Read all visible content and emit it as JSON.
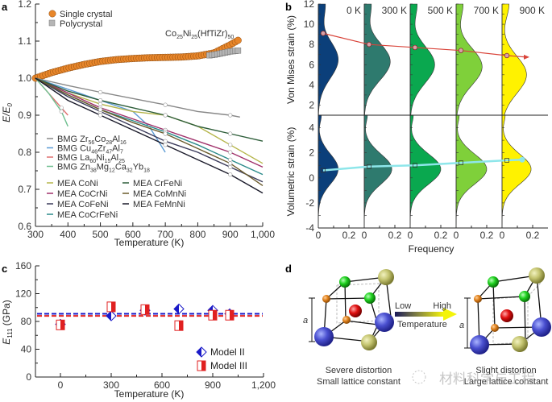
{
  "chart_data": [
    {
      "panel": "a",
      "type": "line",
      "xlabel": "Temperature (K)",
      "ylabel": "E/E0",
      "xlim": [
        300,
        1000
      ],
      "ylim": [
        0.6,
        1.2
      ],
      "xticks": [
        "300",
        "400",
        "500",
        "600",
        "700",
        "800",
        "900",
        "1,000"
      ],
      "yticks": [
        "0.6",
        "0.7",
        "0.8",
        "0.9",
        "1.0",
        "1.1",
        "1.2"
      ],
      "annotation": "Co25Ni25(HfTiZr)50",
      "legend_top": [
        {
          "name": "Single crystal",
          "marker": "circle",
          "color": "#e8862a"
        },
        {
          "name": "Polycrystal",
          "marker": "square",
          "color": "#b5b5b5"
        }
      ],
      "series": [
        {
          "name": "Single crystal",
          "color": "#e8862a",
          "x": [
            300,
            350,
            400,
            450,
            500,
            550,
            600,
            650,
            700,
            750,
            800,
            850,
            900,
            930
          ],
          "y": [
            1.0,
            1.015,
            1.027,
            1.037,
            1.045,
            1.05,
            1.053,
            1.055,
            1.056,
            1.057,
            1.06,
            1.068,
            1.09,
            1.105
          ]
        },
        {
          "name": "Polycrystal",
          "color": "#b5b5b5",
          "x": [
            300,
            350,
            400,
            450,
            500,
            550,
            600,
            650,
            700,
            750,
            800,
            850,
            900,
            930
          ],
          "y": [
            1.0,
            1.015,
            1.027,
            1.037,
            1.045,
            1.05,
            1.053,
            1.055,
            1.056,
            1.057,
            1.058,
            1.063,
            1.072,
            1.075
          ]
        },
        {
          "name": "BMG Zr56Co28Al16",
          "color": "#888888",
          "x": [
            300,
            400,
            500,
            600,
            700,
            800,
            900,
            930
          ],
          "y": [
            1.0,
            0.98,
            0.962,
            0.945,
            0.928,
            0.91,
            0.9,
            0.895
          ]
        },
        {
          "name": "BMG Cu46Zr47Al7",
          "color": "#5b9bd5",
          "x": [
            300,
            400,
            500,
            600,
            650,
            700
          ],
          "y": [
            1.0,
            0.97,
            0.94,
            0.91,
            0.87,
            0.8
          ]
        },
        {
          "name": "BMG La60Ni15Al25",
          "color": "#e07070",
          "x": [
            300,
            340,
            380,
            400
          ],
          "y": [
            1.0,
            0.96,
            0.92,
            0.9
          ]
        },
        {
          "name": "BMG Zn38Mg12Ca32Yb18",
          "color": "#6fbf8f",
          "x": [
            300,
            340,
            380,
            400
          ],
          "y": [
            1.0,
            0.96,
            0.91,
            0.87
          ]
        },
        {
          "name": "MEA CoNi",
          "color": "#b5b54a",
          "x": [
            300,
            400,
            500,
            600,
            700,
            800,
            900,
            1000
          ],
          "y": [
            1.0,
            0.96,
            0.93,
            0.91,
            0.9,
            0.87,
            0.82,
            0.77
          ]
        },
        {
          "name": "MEA CoCrNi",
          "color": "#a0306a",
          "x": [
            300,
            400,
            500,
            600,
            700,
            800,
            900,
            1000
          ],
          "y": [
            1.0,
            0.96,
            0.92,
            0.89,
            0.86,
            0.83,
            0.8,
            0.76
          ]
        },
        {
          "name": "MEA CoFeNi",
          "color": "#3a3a5a",
          "x": [
            300,
            400,
            500,
            600,
            700,
            800,
            900,
            1000
          ],
          "y": [
            1.0,
            0.95,
            0.91,
            0.87,
            0.83,
            0.8,
            0.76,
            0.72
          ]
        },
        {
          "name": "MEA CoCrFeNi",
          "color": "#2a8a8a",
          "x": [
            300,
            400,
            500,
            600,
            700,
            800,
            900,
            1000
          ],
          "y": [
            1.0,
            0.955,
            0.915,
            0.885,
            0.855,
            0.82,
            0.78,
            0.74
          ]
        },
        {
          "name": "MEA CrFeNi",
          "color": "#2e5e3a",
          "x": [
            300,
            400,
            500,
            600,
            700,
            800,
            900,
            1000
          ],
          "y": [
            1.0,
            0.965,
            0.94,
            0.92,
            0.9,
            0.87,
            0.85,
            0.83
          ]
        },
        {
          "name": "MEA CoMnNi",
          "color": "#6a5a2a",
          "x": [
            300,
            400,
            500,
            600,
            700,
            800,
            900,
            1000
          ],
          "y": [
            1.0,
            0.955,
            0.915,
            0.88,
            0.85,
            0.81,
            0.77,
            0.71
          ]
        },
        {
          "name": "MEA FeMnNi",
          "color": "#1a1a2a",
          "x": [
            300,
            400,
            500,
            600,
            700,
            800,
            900,
            1000
          ],
          "y": [
            1.0,
            0.94,
            0.9,
            0.86,
            0.82,
            0.78,
            0.74,
            0.69
          ]
        }
      ],
      "legend_bmg": [
        "BMG Zr56Co28Al16",
        "BMG Cu46Zr47Al7",
        "BMG La60Ni15Al25",
        "BMG Zn38Mg12Ca32Yb18"
      ],
      "legend_mea_col1": [
        "MEA CoNi",
        "MEA CoCrNi",
        "MEA CoFeNi",
        "MEA CoCrFeNi"
      ],
      "legend_mea_col2": [
        "MEA CrFeNi",
        "MEA CoMnNi",
        "MEA FeMnNi"
      ]
    },
    {
      "panel": "b",
      "type": "area",
      "xlabel": "Frequency",
      "ylabel_top": "Von Mises strain (%)",
      "ylabel_bottom": "Volumetric strain (%)",
      "temperatures": [
        "0 K",
        "300 K",
        "500 K",
        "700 K",
        "900 K"
      ],
      "colors": [
        "#0b3f7a",
        "#2e7a6e",
        "#0aa84f",
        "#7fd03a",
        "#fff200"
      ],
      "xlim": [
        0,
        0.3
      ],
      "xticks": [
        "0",
        "0.2"
      ],
      "ylim_top": [
        1,
        12
      ],
      "yticks_top": [
        "2",
        "4",
        "6",
        "8",
        "10",
        "12"
      ],
      "ylim_bottom": [
        -4,
        5
      ],
      "yticks_bottom": [
        "-4",
        "-2",
        "0",
        "2",
        "4"
      ],
      "von_mises_means": [
        9.1,
        8.0,
        7.7,
        7.4,
        6.9
      ],
      "von_mises_peak_freq": [
        0.13,
        0.17,
        0.16,
        0.17,
        0.16
      ],
      "von_mises_peak_y": [
        6.5,
        6.3,
        6.0,
        5.8,
        5.0
      ],
      "volumetric_means": [
        0.6,
        0.9,
        1.0,
        1.2,
        1.4
      ],
      "volumetric_peak_freq": [
        0.13,
        0.18,
        0.2,
        0.2,
        0.19
      ],
      "trend_top_color": "#d9443a",
      "trend_bottom_color": "#8ee6ea"
    },
    {
      "panel": "c",
      "type": "scatter",
      "xlabel": "Temperature (K)",
      "ylabel": "E111 (GPa)",
      "xlim": [
        -150,
        1200
      ],
      "ylim": [
        0,
        160
      ],
      "xticks": [
        "0",
        "300",
        "600",
        "900",
        "1,200"
      ],
      "yticks": [
        "0",
        "40",
        "80",
        "120",
        "160"
      ],
      "series": [
        {
          "name": "Model II",
          "marker": "diamond",
          "color": "#1a1ac8",
          "x": [
            0,
            300,
            500,
            700,
            900,
            1000
          ],
          "y": [
            76,
            88,
            96,
            98,
            96,
            91
          ],
          "mean": 91
        },
        {
          "name": "Model III",
          "marker": "square",
          "color": "#e02020",
          "x": [
            0,
            300,
            500,
            700,
            900,
            1000
          ],
          "y": [
            75,
            101,
            97,
            74,
            89,
            89
          ],
          "mean": 88
        }
      ]
    }
  ],
  "panels": {
    "a": "a",
    "b": "b",
    "c": "c",
    "d": "d"
  },
  "diagram_d": {
    "left_caption_1": "Severe distortion",
    "left_caption_2": "Small lattice constant",
    "right_caption_1": "Slight distortion",
    "right_caption_2": "Large lattice constant",
    "arrow_low": "Low",
    "arrow_high": "High",
    "arrow_label": "Temperature",
    "lattice_label": "a"
  },
  "watermark": "材料科学与工程"
}
